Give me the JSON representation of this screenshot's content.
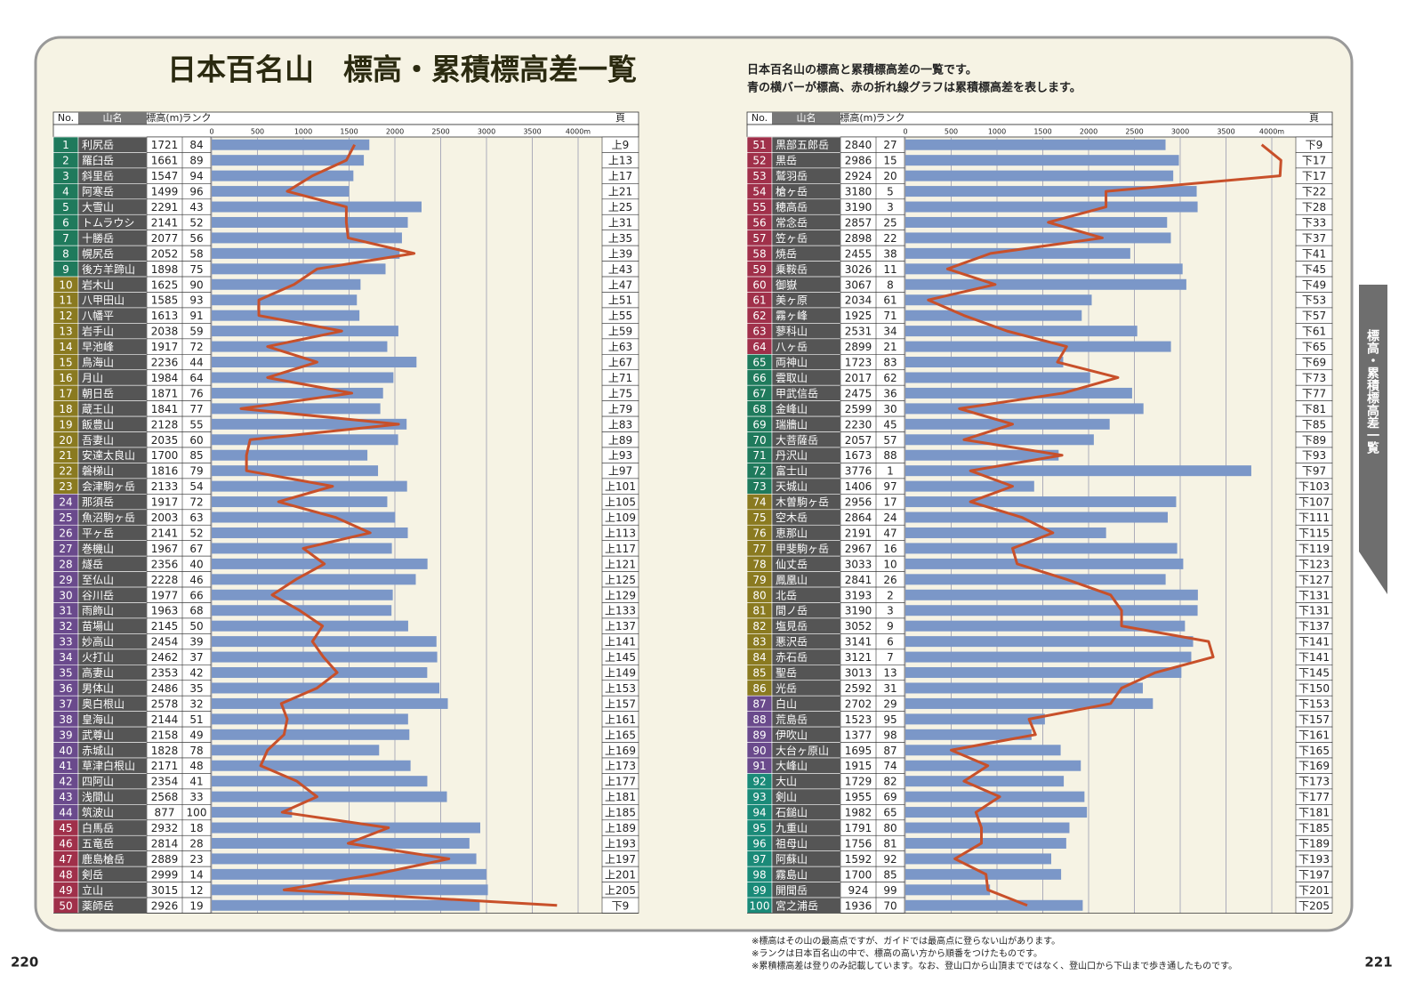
{
  "title": "日本百名山　標高・累積標高差一覧",
  "description": [
    "日本百名山の標高と累積標高差の一覧です。",
    "青の横バーが標高、赤の折れ線グラフは累積標高差を表します。"
  ],
  "side_tab": "標高・累積標高差一覧",
  "columns": [
    "No.",
    "山名",
    "標高(m)",
    "ランク",
    "頁"
  ],
  "axis": {
    "xlim": [
      0,
      4000
    ],
    "xticks": [
      0,
      500,
      1000,
      1500,
      2000,
      2500,
      3000,
      3500,
      {
        "value": 4000,
        "label": "4000m"
      }
    ],
    "bar_color": "#7b97c8",
    "line_color": "#c8502a"
  },
  "tables": [
    {
      "rows": [
        [
          1,
          "利尻岳",
          1721,
          84,
          "上9"
        ],
        [
          2,
          "羅臼岳",
          1661,
          89,
          "上13"
        ],
        [
          3,
          "斜里岳",
          1547,
          94,
          "上17"
        ],
        [
          4,
          "阿寒岳",
          1499,
          96,
          "上21"
        ],
        [
          5,
          "大雪山",
          2291,
          43,
          "上25"
        ],
        [
          6,
          "トムラウシ",
          2141,
          52,
          "上31"
        ],
        [
          7,
          "十勝岳",
          2077,
          56,
          "上35"
        ],
        [
          8,
          "幌尻岳",
          2052,
          58,
          "上39"
        ],
        [
          9,
          "後方羊蹄山",
          1898,
          75,
          "上43"
        ],
        [
          10,
          "岩木山",
          1625,
          90,
          "上47"
        ],
        [
          11,
          "八甲田山",
          1585,
          93,
          "上51"
        ],
        [
          12,
          "八幡平",
          1613,
          91,
          "上55"
        ],
        [
          13,
          "岩手山",
          2038,
          59,
          "上59"
        ],
        [
          14,
          "早池峰",
          1917,
          72,
          "上63"
        ],
        [
          15,
          "鳥海山",
          2236,
          44,
          "上67"
        ],
        [
          16,
          "月山",
          1984,
          64,
          "上71"
        ],
        [
          17,
          "朝日岳",
          1871,
          76,
          "上75"
        ],
        [
          18,
          "蔵王山",
          1841,
          77,
          "上79"
        ],
        [
          19,
          "飯豊山",
          2128,
          55,
          "上83"
        ],
        [
          20,
          "吾妻山",
          2035,
          60,
          "上89"
        ],
        [
          21,
          "安達太良山",
          1700,
          85,
          "上93"
        ],
        [
          22,
          "磐梯山",
          1816,
          79,
          "上97"
        ],
        [
          23,
          "会津駒ヶ岳",
          2133,
          54,
          "上101"
        ],
        [
          24,
          "那須岳",
          1917,
          72,
          "上105"
        ],
        [
          25,
          "魚沼駒ヶ岳",
          2003,
          63,
          "上109"
        ],
        [
          26,
          "平ヶ岳",
          2141,
          52,
          "上113"
        ],
        [
          27,
          "巻機山",
          1967,
          67,
          "上117"
        ],
        [
          28,
          "燧岳",
          2356,
          40,
          "上121"
        ],
        [
          29,
          "至仏山",
          2228,
          46,
          "上125"
        ],
        [
          30,
          "谷川岳",
          1977,
          66,
          "上129"
        ],
        [
          31,
          "雨飾山",
          1963,
          68,
          "上133"
        ],
        [
          32,
          "苗場山",
          2145,
          50,
          "上137"
        ],
        [
          33,
          "妙高山",
          2454,
          39,
          "上141"
        ],
        [
          34,
          "火打山",
          2462,
          37,
          "上145"
        ],
        [
          35,
          "高妻山",
          2353,
          42,
          "上149"
        ],
        [
          36,
          "男体山",
          2486,
          35,
          "上153"
        ],
        [
          37,
          "奥白根山",
          2578,
          32,
          "上157"
        ],
        [
          38,
          "皇海山",
          2144,
          51,
          "上161"
        ],
        [
          39,
          "武尊山",
          2158,
          49,
          "上165"
        ],
        [
          40,
          "赤城山",
          1828,
          78,
          "上169"
        ],
        [
          41,
          "草津白根山",
          2171,
          48,
          "上173"
        ],
        [
          42,
          "四阿山",
          2354,
          41,
          "上177"
        ],
        [
          43,
          "浅間山",
          2568,
          33,
          "上181"
        ],
        [
          44,
          "筑波山",
          877,
          100,
          "上185"
        ],
        [
          45,
          "白馬岳",
          2932,
          18,
          "上189"
        ],
        [
          46,
          "五竜岳",
          2814,
          28,
          "上193"
        ],
        [
          47,
          "鹿島槍岳",
          2889,
          23,
          "上197"
        ],
        [
          48,
          "剣岳",
          2999,
          14,
          "上201"
        ],
        [
          49,
          "立山",
          3015,
          12,
          "上205"
        ],
        [
          50,
          "薬師岳",
          2926,
          19,
          "下9"
        ]
      ],
      "row_colors": [
        "#1f7a5c",
        "#1f7a5c",
        "#1f7a5c",
        "#1f7a5c",
        "#1f7a5c",
        "#1f7a5c",
        "#1f7a5c",
        "#1f7a5c",
        "#1f7a5c",
        "#8a7a20",
        "#8a7a20",
        "#8a7a20",
        "#8a7a20",
        "#8a7a20",
        "#8a7a20",
        "#8a7a20",
        "#8a7a20",
        "#8a7a20",
        "#8a7a20",
        "#8a7a20",
        "#8a7a20",
        "#8a7a20",
        "#8a7a20",
        "#6a4a8c",
        "#6a4a8c",
        "#6a4a8c",
        "#6a4a8c",
        "#6a4a8c",
        "#6a4a8c",
        "#6a4a8c",
        "#6a4a8c",
        "#6a4a8c",
        "#6a4a8c",
        "#6a4a8c",
        "#6a4a8c",
        "#6a4a8c",
        "#6a4a8c",
        "#6a4a8c",
        "#6a4a8c",
        "#6a4a8c",
        "#6a4a8c",
        "#6a4a8c",
        "#6a4a8c",
        "#6a4a8c",
        "#a0304a",
        "#a0304a",
        "#a0304a",
        "#a0304a",
        "#a0304a",
        "#a0304a"
      ],
      "gain": [
        1560,
        1470,
        1100,
        825,
        1470,
        1470,
        1490,
        2210,
        1150,
        900,
        515,
        515,
        1420,
        610,
        1150,
        610,
        1530,
        320,
        2040,
        420,
        380,
        380,
        1320,
        730,
        1350,
        1730,
        1000,
        1230,
        920,
        660,
        960,
        1210,
        1100,
        1220,
        1370,
        1150,
        760,
        825,
        790,
        610,
        535,
        930,
        1150,
        770,
        1930,
        1490,
        2590,
        1780,
        790,
        3770
      ]
    },
    {
      "rows": [
        [
          51,
          "黒部五郎岳",
          2840,
          27,
          "下9"
        ],
        [
          52,
          "黒岳",
          2986,
          15,
          "下17"
        ],
        [
          53,
          "鷲羽岳",
          2924,
          20,
          "下17"
        ],
        [
          54,
          "槍ヶ岳",
          3180,
          5,
          "下22"
        ],
        [
          55,
          "穂高岳",
          3190,
          3,
          "下28"
        ],
        [
          56,
          "常念岳",
          2857,
          25,
          "下33"
        ],
        [
          57,
          "笠ヶ岳",
          2898,
          22,
          "下37"
        ],
        [
          58,
          "焼岳",
          2455,
          38,
          "下41"
        ],
        [
          59,
          "乗鞍岳",
          3026,
          11,
          "下45"
        ],
        [
          60,
          "御嶽",
          3067,
          8,
          "下49"
        ],
        [
          61,
          "美ヶ原",
          2034,
          61,
          "下53"
        ],
        [
          62,
          "霧ヶ峰",
          1925,
          71,
          "下57"
        ],
        [
          63,
          "蓼科山",
          2531,
          34,
          "下61"
        ],
        [
          64,
          "八ヶ岳",
          2899,
          21,
          "下65"
        ],
        [
          65,
          "両神山",
          1723,
          83,
          "下69"
        ],
        [
          66,
          "雲取山",
          2017,
          62,
          "下73"
        ],
        [
          67,
          "甲武信岳",
          2475,
          36,
          "下77"
        ],
        [
          68,
          "金峰山",
          2599,
          30,
          "下81"
        ],
        [
          69,
          "瑞牆山",
          2230,
          45,
          "下85"
        ],
        [
          70,
          "大菩薩岳",
          2057,
          57,
          "下89"
        ],
        [
          71,
          "丹沢山",
          1673,
          88,
          "下93"
        ],
        [
          72,
          "富士山",
          3776,
          1,
          "下97"
        ],
        [
          73,
          "天城山",
          1406,
          97,
          "下103"
        ],
        [
          74,
          "木曽駒ヶ岳",
          2956,
          17,
          "下107"
        ],
        [
          75,
          "空木岳",
          2864,
          24,
          "下111"
        ],
        [
          76,
          "恵那山",
          2191,
          47,
          "下115"
        ],
        [
          77,
          "甲斐駒ヶ岳",
          2967,
          16,
          "下119"
        ],
        [
          78,
          "仙丈岳",
          3033,
          10,
          "下123"
        ],
        [
          79,
          "鳳凰山",
          2841,
          26,
          "下127"
        ],
        [
          80,
          "北岳",
          3193,
          2,
          "下131"
        ],
        [
          81,
          "間ノ岳",
          3190,
          3,
          "下131"
        ],
        [
          82,
          "塩見岳",
          3052,
          9,
          "下137"
        ],
        [
          83,
          "悪沢岳",
          3141,
          6,
          "下141"
        ],
        [
          84,
          "赤石岳",
          3121,
          7,
          "下141"
        ],
        [
          85,
          "聖岳",
          3013,
          13,
          "下145"
        ],
        [
          86,
          "光岳",
          2592,
          31,
          "下150"
        ],
        [
          87,
          "白山",
          2702,
          29,
          "下153"
        ],
        [
          88,
          "荒島岳",
          1523,
          95,
          "下157"
        ],
        [
          89,
          "伊吹山",
          1377,
          98,
          "下161"
        ],
        [
          90,
          "大台ヶ原山",
          1695,
          87,
          "下165"
        ],
        [
          91,
          "大峰山",
          1915,
          74,
          "下169"
        ],
        [
          92,
          "大山",
          1729,
          82,
          "下173"
        ],
        [
          93,
          "剣山",
          1955,
          69,
          "下177"
        ],
        [
          94,
          "石鎚山",
          1982,
          65,
          "下181"
        ],
        [
          95,
          "九重山",
          1791,
          80,
          "下185"
        ],
        [
          96,
          "祖母山",
          1756,
          81,
          "下189"
        ],
        [
          97,
          "阿蘇山",
          1592,
          92,
          "下193"
        ],
        [
          98,
          "霧島山",
          1700,
          85,
          "下197"
        ],
        [
          99,
          "開聞岳",
          924,
          99,
          "下201"
        ],
        [
          100,
          "宮之浦岳",
          1936,
          70,
          "下205"
        ]
      ],
      "row_colors": [
        "#a0304a",
        "#a0304a",
        "#a0304a",
        "#a0304a",
        "#a0304a",
        "#a0304a",
        "#a0304a",
        "#a0304a",
        "#a0304a",
        "#a0304a",
        "#a0304a",
        "#a0304a",
        "#a0304a",
        "#a0304a",
        "#1f7a5c",
        "#1f7a5c",
        "#1f7a5c",
        "#1f7a5c",
        "#1f7a5c",
        "#1f7a5c",
        "#1f7a5c",
        "#1f7a5c",
        "#1f7a5c",
        "#8a7a20",
        "#8a7a20",
        "#8a7a20",
        "#8a7a20",
        "#8a7a20",
        "#8a7a20",
        "#8a7a20",
        "#8a7a20",
        "#8a7a20",
        "#8a7a20",
        "#8a7a20",
        "#8a7a20",
        "#8a7a20",
        "#6a4a8c",
        "#6a4a8c",
        "#6a4a8c",
        "#6a4a8c",
        "#6a4a8c",
        "#1a8a78",
        "#1a8a78",
        "#1a8a78",
        "#1a8a78",
        "#1a8a78",
        "#1a8a78",
        "#1a8a78",
        "#1a8a78",
        "#1a8a78"
      ],
      "gain": [
        3890,
        4100,
        4090,
        2190,
        2190,
        1560,
        2150,
        930,
        460,
        980,
        250,
        640,
        1110,
        1760,
        1660,
        2320,
        1720,
        590,
        1170,
        640,
        1710,
        710,
        1170,
        710,
        1270,
        1610,
        1170,
        1220,
        1760,
        2240,
        2360,
        2360,
        3310,
        3360,
        2730,
        2360,
        2240,
        1350,
        1420,
        500,
        900,
        640,
        1030,
        770,
        830,
        830,
        540,
        880,
        900,
        1330
      ]
    }
  ],
  "notes": [
    "※標高はその山の最高点ですが、ガイドでは最高点に登らない山があります。",
    "※ランクは日本百名山の中で、標高の高い方から順番をつけたものです。",
    "※累積標高差は登りのみ記載しています。なお、登山口から山頂までではなく、登山口から下山まで歩き通したものです。"
  ],
  "page_numbers": [
    "220",
    "221"
  ]
}
